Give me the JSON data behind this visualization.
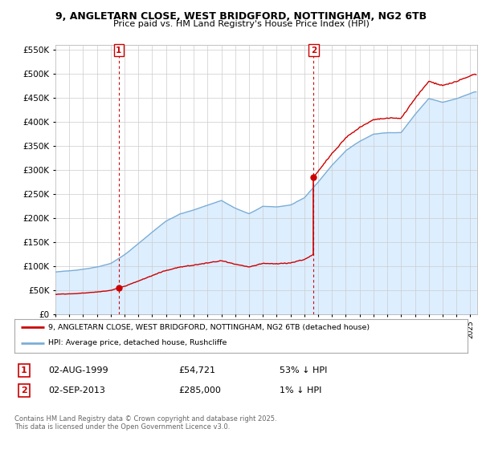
{
  "title_line1": "9, ANGLETARN CLOSE, WEST BRIDGFORD, NOTTINGHAM, NG2 6TB",
  "title_line2": "Price paid vs. HM Land Registry's House Price Index (HPI)",
  "background_color": "#ffffff",
  "plot_background": "#ffffff",
  "plot_fill_color": "#ddeeff",
  "grid_color": "#cccccc",
  "ylim": [
    0,
    560000
  ],
  "yticks": [
    0,
    50000,
    100000,
    150000,
    200000,
    250000,
    300000,
    350000,
    400000,
    450000,
    500000,
    550000
  ],
  "xlim_start": 1995.0,
  "xlim_end": 2025.5,
  "sale1_date": 1999.58,
  "sale1_price": 54721,
  "sale2_date": 2013.67,
  "sale2_price": 285000,
  "legend_label_red": "9, ANGLETARN CLOSE, WEST BRIDGFORD, NOTTINGHAM, NG2 6TB (detached house)",
  "legend_label_blue": "HPI: Average price, detached house, Rushcliffe",
  "annotation1_label": "1",
  "annotation1_date": "02-AUG-1999",
  "annotation1_price": "£54,721",
  "annotation1_hpi": "53% ↓ HPI",
  "annotation2_label": "2",
  "annotation2_date": "02-SEP-2013",
  "annotation2_price": "£285,000",
  "annotation2_hpi": "1% ↓ HPI",
  "copyright_text": "Contains HM Land Registry data © Crown copyright and database right 2025.\nThis data is licensed under the Open Government Licence v3.0.",
  "red_color": "#cc0000",
  "blue_color": "#7aaed6",
  "marker_color": "#cc0000",
  "hpi_waypoints_years": [
    1995.0,
    1996.0,
    1997.0,
    1998.0,
    1999.0,
    2000.0,
    2001.0,
    2002.0,
    2003.0,
    2004.0,
    2005.0,
    2006.0,
    2007.0,
    2008.0,
    2009.0,
    2010.0,
    2011.0,
    2012.0,
    2013.0,
    2014.0,
    2015.0,
    2016.0,
    2017.0,
    2018.0,
    2019.0,
    2020.0,
    2021.0,
    2022.0,
    2023.0,
    2024.0,
    2025.3
  ],
  "hpi_waypoints_vals": [
    88000,
    90000,
    94000,
    99000,
    107000,
    125000,
    148000,
    172000,
    195000,
    210000,
    218000,
    228000,
    238000,
    222000,
    210000,
    225000,
    224000,
    228000,
    242000,
    275000,
    310000,
    340000,
    360000,
    375000,
    378000,
    378000,
    415000,
    448000,
    440000,
    448000,
    462000
  ]
}
